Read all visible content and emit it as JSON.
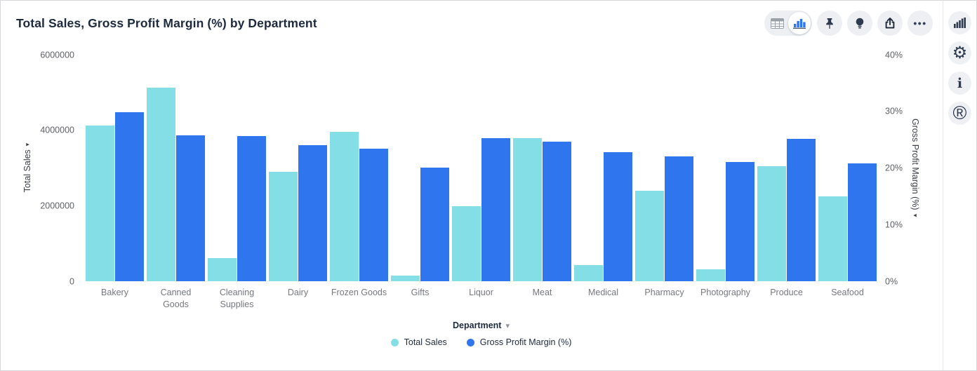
{
  "header": {
    "title": "Total Sales, Gross Profit Margin (%) by Department"
  },
  "icons": {
    "ellipsis": "•••",
    "dropdown_chevron": "▾",
    "left_axis_arrow": "▸",
    "right_axis_arrow": "◂",
    "gear": "⚙",
    "info": "i",
    "r_logo": "®"
  },
  "colors": {
    "total_sales": "#84dee6",
    "gross_profit_margin": "#2f76ee",
    "icon_navy": "#2e3a4e",
    "button_bg": "#edeff3",
    "title_text": "#1d2a3e"
  },
  "chart_data": {
    "type": "bar",
    "title": "Total Sales, Gross Profit Margin (%) by Department",
    "xlabel": "Department",
    "grid": false,
    "legend_position": "bottom-center",
    "categories": [
      "Bakery",
      "Canned Goods",
      "Cleaning Supplies",
      "Dairy",
      "Frozen Goods",
      "Gifts",
      "Liquor",
      "Meat",
      "Medical",
      "Pharmacy",
      "Photography",
      "Produce",
      "Seafood"
    ],
    "series": [
      {
        "name": "Total Sales",
        "axis": "left",
        "color": "#84dee6",
        "values": [
          4130000,
          5130000,
          610000,
          2900000,
          3960000,
          150000,
          1990000,
          3790000,
          430000,
          2400000,
          310000,
          3050000,
          2240000
        ]
      },
      {
        "name": "Gross Profit Margin (%)",
        "axis": "right",
        "color": "#2f76ee",
        "values": [
          29.9,
          25.8,
          25.6,
          24.0,
          23.4,
          20.1,
          25.3,
          24.6,
          22.8,
          22.1,
          21.0,
          25.2,
          20.8
        ]
      }
    ],
    "left_axis": {
      "label": "Total Sales",
      "min": 0,
      "max": 6000000,
      "ticks": [
        "0",
        "2000000",
        "4000000",
        "6000000"
      ]
    },
    "right_axis": {
      "label": "Gross Profit Margin (%)",
      "min": 0,
      "max": 40,
      "ticks": [
        "0%",
        "10%",
        "20%",
        "30%",
        "40%"
      ]
    }
  }
}
